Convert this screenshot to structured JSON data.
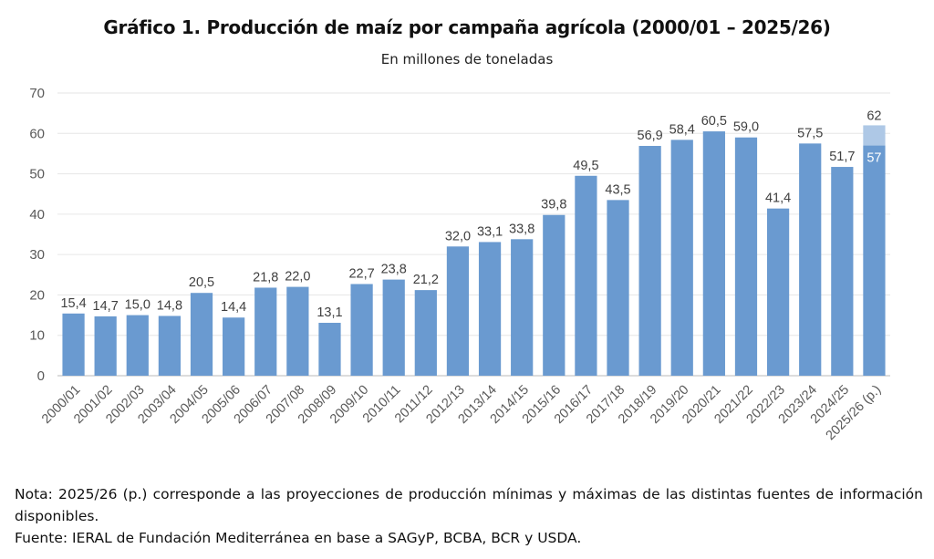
{
  "header": {
    "title": "Gráfico 1. Producción de maíz por campaña agrícola (2000/01 – 2025/26)",
    "subtitle": "En millones de toneladas"
  },
  "notes": {
    "nota": "Nota: 2025/26 (p.) corresponde a las proyecciones de producción mínimas y máximas de las distintas fuentes de información disponibles.",
    "fuente": "Fuente: IERAL de Fundación Mediterránea en base a SAGyP, BCBA, BCR y USDA."
  },
  "colors": {
    "bar": "#6a9ad0",
    "projection_max": "#aec8e6",
    "grid": "#e6e6e6",
    "axis": "#d0d0d0"
  },
  "chart_data": {
    "type": "bar",
    "title": "Gráfico 1. Producción de maíz por campaña agrícola (2000/01 – 2025/26)",
    "subtitle": "En millones de toneladas",
    "xlabel": "",
    "ylabel": "",
    "ylim": [
      0,
      70
    ],
    "yticks": [
      0,
      10,
      20,
      30,
      40,
      50,
      60,
      70
    ],
    "grid": true,
    "legend": "none",
    "categories": [
      "2000/01",
      "2001/02",
      "2002/03",
      "2003/04",
      "2004/05",
      "2005/06",
      "2006/07",
      "2007/08",
      "2008/09",
      "2009/10",
      "2010/11",
      "2011/12",
      "2012/13",
      "2013/14",
      "2014/15",
      "2015/16",
      "2016/17",
      "2017/18",
      "2018/19",
      "2019/20",
      "2020/21",
      "2021/22",
      "2022/23",
      "2023/24",
      "2024/25",
      "2025/26 (p.)"
    ],
    "values": [
      15.4,
      14.7,
      15.0,
      14.8,
      20.5,
      14.4,
      21.8,
      22.0,
      13.1,
      22.7,
      23.8,
      21.2,
      32.0,
      33.1,
      33.8,
      39.8,
      49.5,
      43.5,
      56.9,
      58.4,
      60.5,
      59.0,
      41.4,
      57.5,
      51.7,
      57
    ],
    "labels": [
      "15,4",
      "14,7",
      "15,0",
      "14,8",
      "20,5",
      "14,4",
      "21,8",
      "22,0",
      "13,1",
      "22,7",
      "23,8",
      "21,2",
      "32,0",
      "33,1",
      "33,8",
      "39,8",
      "49,5",
      "43,5",
      "56,9",
      "58,4",
      "60,5",
      "59,0",
      "41,4",
      "57,5",
      "51,7",
      "57"
    ],
    "projection": {
      "category": "2025/26 (p.)",
      "min": 57,
      "max": 62,
      "min_label": "57",
      "max_label": "62"
    }
  }
}
